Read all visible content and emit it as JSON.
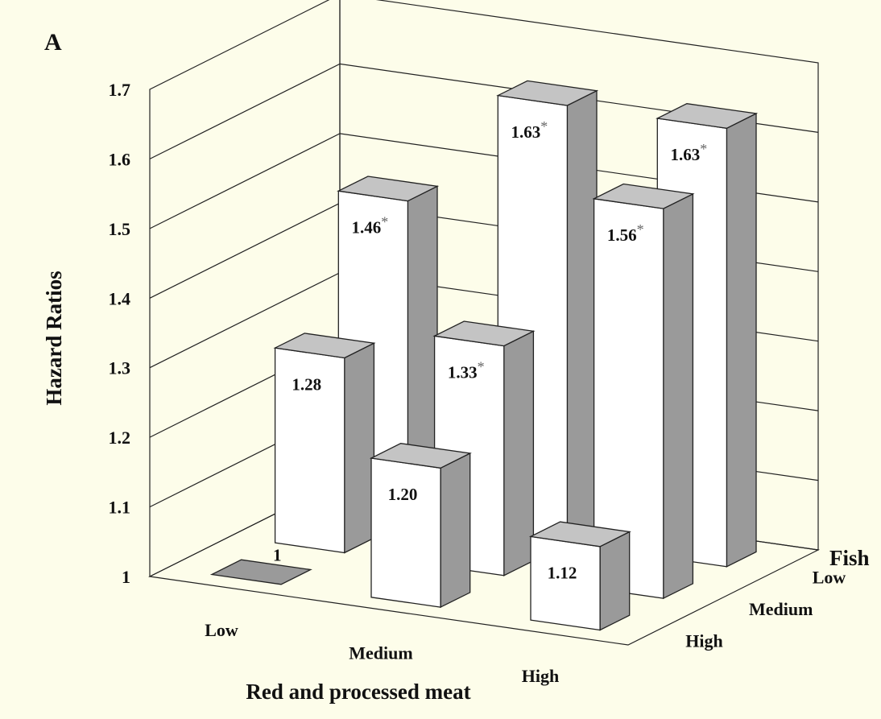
{
  "chart_data": {
    "type": "bar",
    "subtype": "3d-grouped",
    "panel_label": "A",
    "title": "",
    "xlabel": "Red and processed meat",
    "zlabel": "Fish",
    "ylabel": "Hazard Ratios",
    "x_categories": [
      "Low",
      "Medium",
      "High"
    ],
    "z_categories": [
      "Low",
      "Medium",
      "High"
    ],
    "ylim": [
      1,
      1.7
    ],
    "yticks": [
      "1",
      "1.1",
      "1.2",
      "1.3",
      "1.4",
      "1.5",
      "1.6",
      "1.7"
    ],
    "grid": true,
    "series": [
      {
        "name": "Low",
        "values": [
          1.46,
          1.63,
          1.63
        ],
        "labels": [
          "1.46",
          "1.63",
          "1.63"
        ],
        "significant": [
          true,
          true,
          true
        ]
      },
      {
        "name": "Medium",
        "values": [
          1.28,
          1.33,
          1.56
        ],
        "labels": [
          "1.28",
          "1.33",
          "1.56"
        ],
        "significant": [
          false,
          true,
          true
        ]
      },
      {
        "name": "High",
        "values": [
          1.0,
          1.2,
          1.12
        ],
        "labels": [
          "1",
          "1.20",
          "1.12"
        ],
        "significant": [
          false,
          false,
          false
        ]
      }
    ],
    "significance_marker": "*",
    "colors": {
      "bar_front": "#ffffff",
      "bar_side": "#9a9a9a",
      "bar_top": "#c4c4c4",
      "grid": "#222222",
      "background": "#fdfdea"
    }
  }
}
